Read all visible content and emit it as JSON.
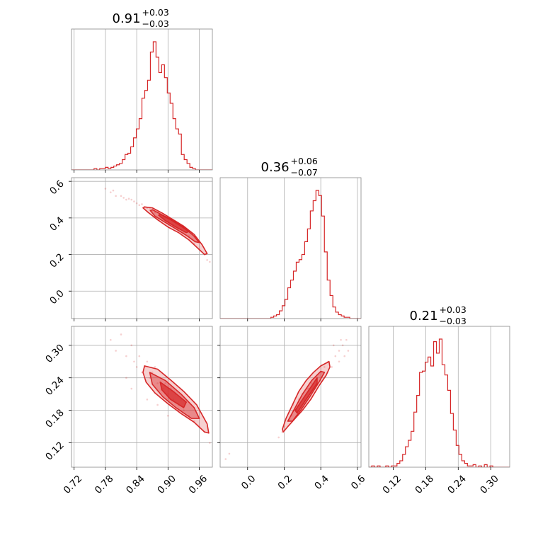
{
  "chart_data": {
    "type": "corner",
    "color": "#d62728",
    "grid": true,
    "parameters": [
      {
        "median": 0.91,
        "err_plus": 0.03,
        "err_minus": 0.03,
        "range": [
          0.715,
          0.985
        ],
        "ticks": [
          0.72,
          0.78,
          0.84,
          0.9,
          0.96
        ],
        "tick_labels": [
          "0.72",
          "0.78",
          "0.84",
          "0.90",
          "0.96"
        ],
        "title_value": "0.91",
        "title_plus": "+0.03",
        "title_minus": "−0.03"
      },
      {
        "median": 0.36,
        "err_plus": 0.06,
        "err_minus": 0.07,
        "range": [
          -0.15,
          0.62
        ],
        "ticks": [
          0.0,
          0.2,
          0.4,
          0.6
        ],
        "tick_labels": [
          "0.0",
          "0.2",
          "0.4",
          "0.6"
        ],
        "title_value": "0.36",
        "title_plus": "+0.06",
        "title_minus": "−0.07"
      },
      {
        "median": 0.21,
        "err_plus": 0.03,
        "err_minus": 0.03,
        "range": [
          0.075,
          0.335
        ],
        "ticks": [
          0.12,
          0.18,
          0.24,
          0.3
        ],
        "tick_labels": [
          "0.12",
          "0.18",
          "0.24",
          "0.30"
        ],
        "title_value": "0.21",
        "title_plus": "+0.03",
        "title_minus": "−0.03"
      }
    ],
    "histograms": [
      {
        "param": 0,
        "bin_start": 0.715,
        "bin_width": 0.0054,
        "counts": [
          0,
          0,
          0,
          0,
          0,
          0,
          0,
          0,
          1,
          0,
          1,
          1,
          2,
          1,
          2,
          3,
          4,
          5,
          8,
          12,
          13,
          18,
          25,
          32,
          40,
          56,
          62,
          70,
          92,
          100,
          88,
          76,
          82,
          72,
          60,
          52,
          40,
          32,
          28,
          12,
          8,
          5,
          2,
          1,
          0,
          0,
          0,
          0,
          0,
          0
        ]
      },
      {
        "param": 1,
        "bin_start": -0.15,
        "bin_width": 0.0154,
        "counts": [
          0,
          0,
          0,
          0,
          0,
          0,
          0,
          0,
          0,
          0,
          0,
          0,
          0,
          0,
          0,
          0,
          0,
          0,
          1,
          2,
          3,
          6,
          10,
          15,
          24,
          30,
          37,
          44,
          46,
          50,
          60,
          70,
          84,
          92,
          100,
          96,
          80,
          52,
          30,
          18,
          9,
          5,
          3,
          2,
          1,
          1,
          0,
          0,
          0,
          0
        ]
      },
      {
        "param": 2,
        "bin_start": 0.075,
        "bin_width": 0.0052,
        "counts": [
          0,
          1,
          0,
          1,
          0,
          0,
          1,
          0,
          1,
          1,
          3,
          5,
          10,
          16,
          21,
          28,
          43,
          56,
          74,
          75,
          82,
          86,
          79,
          98,
          89,
          100,
          80,
          72,
          60,
          42,
          29,
          17,
          10,
          5,
          3,
          1,
          1,
          2,
          0,
          1,
          0,
          2,
          0,
          1,
          0,
          0,
          0,
          0,
          0,
          0
        ]
      }
    ],
    "pairs": [
      {
        "x": 0,
        "y": 1,
        "scatter": [
          [
            0.78,
            0.56
          ],
          [
            0.79,
            0.54
          ],
          [
            0.795,
            0.55
          ],
          [
            0.8,
            0.52
          ],
          [
            0.81,
            0.52
          ],
          [
            0.815,
            0.51
          ],
          [
            0.82,
            0.5
          ],
          [
            0.825,
            0.505
          ],
          [
            0.83,
            0.5
          ],
          [
            0.835,
            0.49
          ],
          [
            0.84,
            0.48
          ],
          [
            0.845,
            0.47
          ],
          [
            0.85,
            0.475
          ],
          [
            0.855,
            0.46
          ],
          [
            0.86,
            0.455
          ],
          [
            0.865,
            0.45
          ],
          [
            0.87,
            0.44
          ],
          [
            0.875,
            0.43
          ],
          [
            0.88,
            0.43
          ],
          [
            0.885,
            0.41
          ],
          [
            0.89,
            0.4
          ],
          [
            0.9,
            0.38
          ],
          [
            0.91,
            0.36
          ],
          [
            0.92,
            0.34
          ],
          [
            0.93,
            0.32
          ],
          [
            0.94,
            0.3
          ],
          [
            0.95,
            0.26
          ],
          [
            0.96,
            0.23
          ],
          [
            0.97,
            0.2
          ],
          [
            0.975,
            0.17
          ],
          [
            0.98,
            0.16
          ]
        ],
        "contours": [
          [
            [
              0.855,
              0.46
            ],
            [
              0.87,
              0.455
            ],
            [
              0.89,
              0.425
            ],
            [
              0.91,
              0.39
            ],
            [
              0.93,
              0.355
            ],
            [
              0.95,
              0.31
            ],
            [
              0.965,
              0.255
            ],
            [
              0.975,
              0.205
            ],
            [
              0.97,
              0.2
            ],
            [
              0.955,
              0.24
            ],
            [
              0.94,
              0.28
            ],
            [
              0.92,
              0.32
            ],
            [
              0.9,
              0.35
            ],
            [
              0.88,
              0.39
            ],
            [
              0.862,
              0.43
            ],
            [
              0.852,
              0.455
            ]
          ],
          [
            [
              0.87,
              0.445
            ],
            [
              0.89,
              0.415
            ],
            [
              0.91,
              0.385
            ],
            [
              0.93,
              0.35
            ],
            [
              0.95,
              0.3
            ],
            [
              0.96,
              0.265
            ],
            [
              0.952,
              0.27
            ],
            [
              0.935,
              0.305
            ],
            [
              0.915,
              0.34
            ],
            [
              0.895,
              0.375
            ],
            [
              0.875,
              0.41
            ],
            [
              0.866,
              0.44
            ]
          ],
          [
            [
              0.885,
              0.42
            ],
            [
              0.905,
              0.39
            ],
            [
              0.925,
              0.355
            ],
            [
              0.94,
              0.325
            ],
            [
              0.935,
              0.32
            ],
            [
              0.915,
              0.35
            ],
            [
              0.895,
              0.385
            ],
            [
              0.882,
              0.415
            ]
          ]
        ]
      },
      {
        "x": 0,
        "y": 2,
        "scatter": [
          [
            0.79,
            0.31
          ],
          [
            0.8,
            0.29
          ],
          [
            0.81,
            0.32
          ],
          [
            0.82,
            0.28
          ],
          [
            0.83,
            0.3
          ],
          [
            0.835,
            0.27
          ],
          [
            0.84,
            0.26
          ],
          [
            0.845,
            0.28
          ],
          [
            0.85,
            0.25
          ],
          [
            0.855,
            0.26
          ],
          [
            0.86,
            0.27
          ],
          [
            0.865,
            0.24
          ],
          [
            0.87,
            0.25
          ],
          [
            0.875,
            0.26
          ],
          [
            0.88,
            0.23
          ],
          [
            0.885,
            0.24
          ],
          [
            0.89,
            0.22
          ],
          [
            0.895,
            0.23
          ],
          [
            0.9,
            0.21
          ],
          [
            0.905,
            0.22
          ],
          [
            0.91,
            0.2
          ],
          [
            0.915,
            0.21
          ],
          [
            0.92,
            0.19
          ],
          [
            0.925,
            0.2
          ],
          [
            0.93,
            0.18
          ],
          [
            0.94,
            0.17
          ],
          [
            0.95,
            0.16
          ],
          [
            0.96,
            0.15
          ],
          [
            0.97,
            0.14
          ],
          [
            0.98,
            0.12
          ],
          [
            0.82,
            0.24
          ],
          [
            0.83,
            0.22
          ],
          [
            0.86,
            0.2
          ],
          [
            0.88,
            0.19
          ],
          [
            0.9,
            0.17
          ]
        ],
        "contours": [
          [
            [
              0.855,
              0.262
            ],
            [
              0.88,
              0.256
            ],
            [
              0.905,
              0.236
            ],
            [
              0.93,
              0.215
            ],
            [
              0.955,
              0.19
            ],
            [
              0.975,
              0.155
            ],
            [
              0.978,
              0.138
            ],
            [
              0.97,
              0.14
            ],
            [
              0.95,
              0.158
            ],
            [
              0.925,
              0.174
            ],
            [
              0.9,
              0.192
            ],
            [
              0.875,
              0.212
            ],
            [
              0.858,
              0.232
            ],
            [
              0.852,
              0.25
            ]
          ],
          [
            [
              0.865,
              0.25
            ],
            [
              0.895,
              0.235
            ],
            [
              0.925,
              0.21
            ],
            [
              0.95,
              0.185
            ],
            [
              0.96,
              0.165
            ],
            [
              0.945,
              0.165
            ],
            [
              0.915,
              0.185
            ],
            [
              0.89,
              0.205
            ],
            [
              0.87,
              0.228
            ]
          ],
          [
            [
              0.885,
              0.232
            ],
            [
              0.91,
              0.215
            ],
            [
              0.935,
              0.195
            ],
            [
              0.93,
              0.185
            ],
            [
              0.905,
              0.2
            ],
            [
              0.888,
              0.218
            ]
          ]
        ]
      },
      {
        "x": 1,
        "y": 2,
        "scatter": [
          [
            0.17,
            0.13
          ],
          [
            0.19,
            0.14
          ],
          [
            0.2,
            0.15
          ],
          [
            0.22,
            0.16
          ],
          [
            0.24,
            0.17
          ],
          [
            0.25,
            0.19
          ],
          [
            0.27,
            0.18
          ],
          [
            0.28,
            0.2
          ],
          [
            0.3,
            0.21
          ],
          [
            0.31,
            0.2
          ],
          [
            0.33,
            0.22
          ],
          [
            0.35,
            0.23
          ],
          [
            0.36,
            0.22
          ],
          [
            0.38,
            0.24
          ],
          [
            0.4,
            0.25
          ],
          [
            0.42,
            0.26
          ],
          [
            0.44,
            0.27
          ],
          [
            0.46,
            0.26
          ],
          [
            0.48,
            0.28
          ],
          [
            0.5,
            0.29
          ],
          [
            0.52,
            0.3
          ],
          [
            0.54,
            0.31
          ],
          [
            0.55,
            0.29
          ],
          [
            0.51,
            0.31
          ],
          [
            0.47,
            0.3
          ],
          [
            -0.1,
            0.1
          ],
          [
            -0.12,
            0.09
          ],
          [
            0.5,
            0.27
          ],
          [
            0.53,
            0.28
          ]
        ],
        "contours": [
          [
            [
              0.19,
              0.145
            ],
            [
              0.21,
              0.165
            ],
            [
              0.245,
              0.19
            ],
            [
              0.28,
              0.215
            ],
            [
              0.32,
              0.235
            ],
            [
              0.36,
              0.25
            ],
            [
              0.4,
              0.262
            ],
            [
              0.445,
              0.27
            ],
            [
              0.45,
              0.26
            ],
            [
              0.43,
              0.245
            ],
            [
              0.39,
              0.225
            ],
            [
              0.345,
              0.2
            ],
            [
              0.3,
              0.18
            ],
            [
              0.26,
              0.165
            ],
            [
              0.22,
              0.15
            ],
            [
              0.195,
              0.14
            ]
          ],
          [
            [
              0.22,
              0.16
            ],
            [
              0.26,
              0.185
            ],
            [
              0.3,
              0.21
            ],
            [
              0.35,
              0.235
            ],
            [
              0.4,
              0.252
            ],
            [
              0.42,
              0.25
            ],
            [
              0.39,
              0.232
            ],
            [
              0.34,
              0.205
            ],
            [
              0.29,
              0.18
            ],
            [
              0.245,
              0.16
            ]
          ],
          [
            [
              0.26,
              0.18
            ],
            [
              0.3,
              0.2
            ],
            [
              0.34,
              0.22
            ],
            [
              0.38,
              0.24
            ],
            [
              0.38,
              0.23
            ],
            [
              0.34,
              0.21
            ],
            [
              0.3,
              0.19
            ],
            [
              0.27,
              0.175
            ]
          ]
        ]
      }
    ]
  }
}
